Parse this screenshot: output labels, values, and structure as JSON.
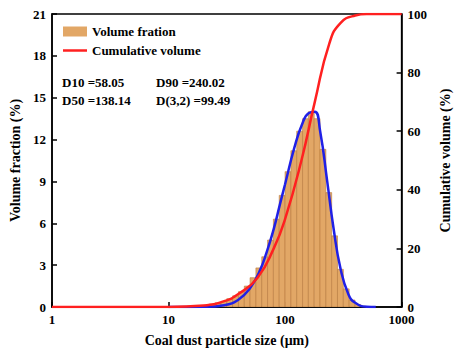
{
  "chart_data": {
    "type": "histogram",
    "x_label": "Coal dust particle size (μm)",
    "y_label": "Volume fraction (%)",
    "y2_label": "Cumulative volume (%)",
    "log": "x",
    "grid": false,
    "legend": "upper left",
    "xlim": [
      1,
      1000
    ],
    "xticks": [
      1,
      10,
      100,
      1000
    ],
    "ylim": [
      0,
      21
    ],
    "yticks": [
      0,
      3,
      6,
      9,
      12,
      15,
      18,
      21
    ],
    "y2lim": [
      0,
      100
    ],
    "y2ticks": [
      0,
      20,
      40,
      60,
      80,
      100
    ],
    "annotations": [
      "D10 =58.05",
      "D90 =240.02",
      "D50 =138.14",
      "D(3,2) =99.49"
    ],
    "series": [
      {
        "name": "Volume fration",
        "type": "histogram",
        "color": "#e2a766",
        "bins": [
          20,
          22.4,
          25.1,
          28.2,
          31.6,
          35.5,
          39.8,
          44.7,
          50.1,
          56.2,
          63.1,
          70.8,
          79.4,
          89.1,
          100,
          112.2,
          125.9,
          141.3,
          158.5,
          177.8,
          199.5,
          223.9,
          251.2,
          281.8,
          316.2,
          354.8,
          398.1,
          446.7,
          501.2
        ],
        "values": [
          0.1,
          0.2,
          0.3,
          0.4,
          0.6,
          0.8,
          1.1,
          1.5,
          2.1,
          2.8,
          3.6,
          4.8,
          6.3,
          8.0,
          9.7,
          11.2,
          12.6,
          13.5,
          14.0,
          13.5,
          11.3,
          8.2,
          5.1,
          2.7,
          1.3,
          0.5,
          0.17,
          0.05
        ]
      },
      {
        "name": "Volume fration",
        "type": "line",
        "color": "#2020e6",
        "x": [
          10,
          15,
          20,
          30,
          40,
          50,
          60,
          70,
          80,
          90,
          100,
          120,
          140,
          160,
          180,
          200,
          230,
          260,
          300,
          350,
          400,
          500,
          600
        ],
        "values": [
          0,
          0,
          0.01,
          0.13,
          0.54,
          1.35,
          2.5,
          4.0,
          5.6,
          7.3,
          8.8,
          11.4,
          13.1,
          13.9,
          14.0,
          12.6,
          9.0,
          5.7,
          2.7,
          0.9,
          0.3,
          0.02,
          0
        ]
      },
      {
        "name": "Cumulative volume",
        "type": "line",
        "color": "#ff2020",
        "axis": "y2",
        "x": [
          1,
          10,
          20,
          30,
          40,
          58.05,
          80,
          100,
          138.14,
          180,
          240.02,
          300,
          400,
          500,
          1000
        ],
        "values": [
          0,
          0,
          0.5,
          2,
          4.5,
          10,
          20,
          30,
          50,
          70,
          90,
          97,
          99.5,
          100,
          100
        ]
      }
    ]
  }
}
